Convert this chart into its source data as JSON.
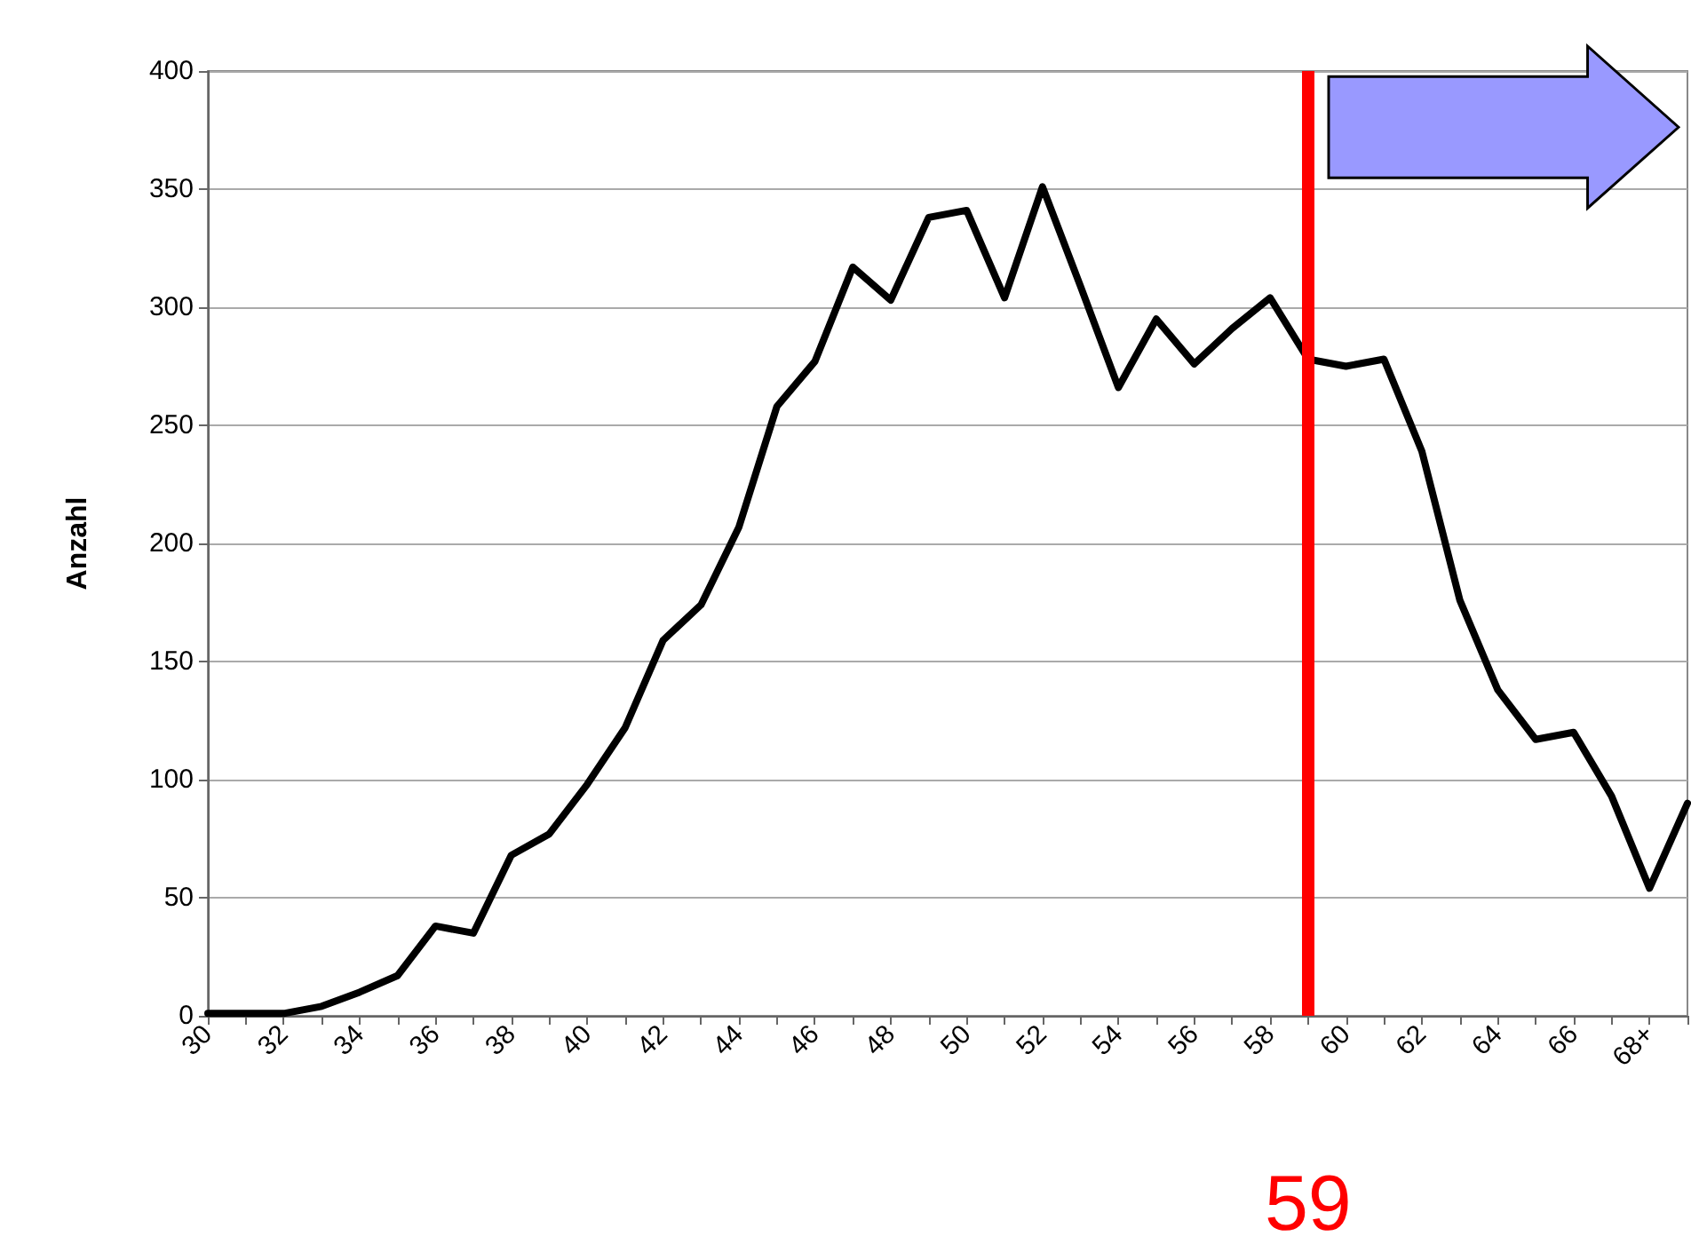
{
  "chart_data": {
    "type": "line",
    "ylabel": "Anzahl",
    "x": [
      30,
      31,
      32,
      33,
      34,
      35,
      36,
      37,
      38,
      39,
      40,
      41,
      42,
      43,
      44,
      45,
      46,
      47,
      48,
      49,
      50,
      51,
      52,
      53,
      54,
      55,
      56,
      57,
      58,
      59,
      60,
      61,
      62,
      63,
      64,
      65,
      66,
      67,
      68,
      69
    ],
    "series": [
      {
        "color": "#000000",
        "values": [
          1,
          1,
          1,
          4,
          10,
          17,
          38,
          35,
          68,
          77,
          98,
          122,
          159,
          174,
          207,
          258,
          277,
          317,
          303,
          338,
          341,
          304,
          351,
          309,
          266,
          295,
          276,
          291,
          304,
          278,
          275,
          278,
          239,
          176,
          138,
          117,
          120,
          93,
          54,
          90
        ]
      }
    ],
    "xlim": [
      30,
      69
    ],
    "xticks": [
      30,
      {
        "value": 31,
        "label": null
      },
      32,
      {
        "value": 33,
        "label": null
      },
      34,
      {
        "value": 35,
        "label": null
      },
      36,
      {
        "value": 37,
        "label": null
      },
      38,
      {
        "value": 39,
        "label": null
      },
      40,
      {
        "value": 41,
        "label": null
      },
      42,
      {
        "value": 43,
        "label": null
      },
      44,
      {
        "value": 45,
        "label": null
      },
      46,
      {
        "value": 47,
        "label": null
      },
      48,
      {
        "value": 49,
        "label": null
      },
      50,
      {
        "value": 51,
        "label": null
      },
      52,
      {
        "value": 53,
        "label": null
      },
      54,
      {
        "value": 55,
        "label": null
      },
      56,
      {
        "value": 57,
        "label": null
      },
      58,
      {
        "value": 59,
        "label": null
      },
      60,
      {
        "value": 61,
        "label": null
      },
      62,
      {
        "value": 63,
        "label": null
      },
      64,
      {
        "value": 65,
        "label": null
      },
      66,
      {
        "value": 67,
        "label": null
      },
      {
        "value": 68,
        "label": "68+"
      },
      {
        "value": 69,
        "label": null
      }
    ],
    "ylim": [
      0,
      400
    ],
    "yticks": [
      0,
      50,
      100,
      150,
      200,
      250,
      300,
      350,
      400
    ],
    "grid": "y",
    "marker": "none",
    "line_style": "solid",
    "ref_lines": [
      {
        "axis": "x",
        "value": 59,
        "label": "59",
        "color": "#ff0000"
      }
    ]
  }
}
